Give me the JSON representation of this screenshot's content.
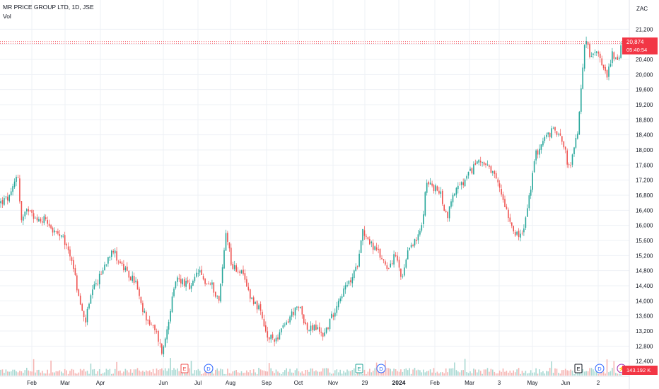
{
  "header": {
    "title": "MR PRICE GROUP LTD, 1D, JSE",
    "indicator": "Vol"
  },
  "currency": "ZAC",
  "price_label": {
    "price": "20,874",
    "countdown": "05:40:54"
  },
  "volume_label": "143.192 K",
  "colors": {
    "up": "#26a69a",
    "down": "#ef5350",
    "badge": "#f23645",
    "grid": "#eef1f6"
  },
  "events": [
    {
      "type": "earnings",
      "label": "E",
      "x": 261,
      "color": "#ef5350"
    },
    {
      "type": "dividend",
      "label": "D",
      "x": 295,
      "color": "#2962ff"
    },
    {
      "type": "earnings",
      "label": "E",
      "x": 508,
      "color": "#26a69a"
    },
    {
      "type": "dividend",
      "label": "D",
      "x": 539,
      "color": "#2962ff"
    },
    {
      "type": "earnings",
      "label": "E",
      "x": 818,
      "color": "#131722"
    },
    {
      "type": "dividend",
      "label": "D",
      "x": 848,
      "color": "#2962ff"
    },
    {
      "type": "split",
      "label": "⚡",
      "x": 879,
      "color": "#9c27b0"
    }
  ],
  "chart_data": {
    "type": "candlestick",
    "y_axis": {
      "min": 12000,
      "max": 21600,
      "ticks": [
        12400,
        12800,
        13200,
        13600,
        14000,
        14400,
        14800,
        15200,
        15600,
        16000,
        16400,
        16800,
        17200,
        17600,
        18000,
        18400,
        18800,
        19200,
        19600,
        20000,
        20400,
        20800,
        21200
      ]
    },
    "x_ticks": [
      "Feb",
      "Mar",
      "Apr",
      "Jun",
      "Jul",
      "Aug",
      "Sep",
      "Oct",
      "Nov",
      "29",
      "2024",
      "Feb",
      "Mar",
      "3",
      "May",
      "Jun",
      "2"
    ],
    "anchors": [
      {
        "x": 0,
        "y": 16600
      },
      {
        "x": 15,
        "y": 16750
      },
      {
        "x": 25,
        "y": 17450
      },
      {
        "x": 30,
        "y": 16100
      },
      {
        "x": 42,
        "y": 16500
      },
      {
        "x": 52,
        "y": 16100
      },
      {
        "x": 65,
        "y": 16200
      },
      {
        "x": 75,
        "y": 15850
      },
      {
        "x": 90,
        "y": 15600
      },
      {
        "x": 102,
        "y": 15100
      },
      {
        "x": 110,
        "y": 14200
      },
      {
        "x": 120,
        "y": 13400
      },
      {
        "x": 130,
        "y": 14200
      },
      {
        "x": 145,
        "y": 14800
      },
      {
        "x": 158,
        "y": 15400
      },
      {
        "x": 170,
        "y": 15000
      },
      {
        "x": 180,
        "y": 14700
      },
      {
        "x": 192,
        "y": 14500
      },
      {
        "x": 200,
        "y": 13800
      },
      {
        "x": 212,
        "y": 13400
      },
      {
        "x": 222,
        "y": 13100
      },
      {
        "x": 230,
        "y": 12600
      },
      {
        "x": 240,
        "y": 13700
      },
      {
        "x": 250,
        "y": 14600
      },
      {
        "x": 260,
        "y": 14500
      },
      {
        "x": 270,
        "y": 14300
      },
      {
        "x": 280,
        "y": 14800
      },
      {
        "x": 290,
        "y": 14500
      },
      {
        "x": 300,
        "y": 14400
      },
      {
        "x": 310,
        "y": 14000
      },
      {
        "x": 320,
        "y": 15900
      },
      {
        "x": 328,
        "y": 14900
      },
      {
        "x": 340,
        "y": 14800
      },
      {
        "x": 355,
        "y": 14100
      },
      {
        "x": 366,
        "y": 13800
      },
      {
        "x": 378,
        "y": 13000
      },
      {
        "x": 390,
        "y": 13000
      },
      {
        "x": 402,
        "y": 13300
      },
      {
        "x": 414,
        "y": 13700
      },
      {
        "x": 425,
        "y": 13800
      },
      {
        "x": 435,
        "y": 13200
      },
      {
        "x": 445,
        "y": 13300
      },
      {
        "x": 458,
        "y": 13100
      },
      {
        "x": 470,
        "y": 13600
      },
      {
        "x": 480,
        "y": 14100
      },
      {
        "x": 495,
        "y": 14500
      },
      {
        "x": 505,
        "y": 14900
      },
      {
        "x": 512,
        "y": 15900
      },
      {
        "x": 525,
        "y": 15500
      },
      {
        "x": 537,
        "y": 15200
      },
      {
        "x": 548,
        "y": 14900
      },
      {
        "x": 560,
        "y": 15200
      },
      {
        "x": 568,
        "y": 14500
      },
      {
        "x": 580,
        "y": 15500
      },
      {
        "x": 590,
        "y": 15600
      },
      {
        "x": 598,
        "y": 16100
      },
      {
        "x": 602,
        "y": 17200
      },
      {
        "x": 612,
        "y": 17000
      },
      {
        "x": 622,
        "y": 16900
      },
      {
        "x": 632,
        "y": 16200
      },
      {
        "x": 642,
        "y": 16900
      },
      {
        "x": 655,
        "y": 17100
      },
      {
        "x": 665,
        "y": 17400
      },
      {
        "x": 678,
        "y": 17800
      },
      {
        "x": 690,
        "y": 17500
      },
      {
        "x": 702,
        "y": 17200
      },
      {
        "x": 712,
        "y": 16700
      },
      {
        "x": 722,
        "y": 16100
      },
      {
        "x": 732,
        "y": 15700
      },
      {
        "x": 740,
        "y": 15800
      },
      {
        "x": 748,
        "y": 16700
      },
      {
        "x": 758,
        "y": 17900
      },
      {
        "x": 770,
        "y": 18300
      },
      {
        "x": 782,
        "y": 18500
      },
      {
        "x": 792,
        "y": 18500
      },
      {
        "x": 800,
        "y": 17900
      },
      {
        "x": 806,
        "y": 17400
      },
      {
        "x": 812,
        "y": 18100
      },
      {
        "x": 818,
        "y": 18500
      },
      {
        "x": 822,
        "y": 19800
      },
      {
        "x": 828,
        "y": 21000
      },
      {
        "x": 836,
        "y": 20400
      },
      {
        "x": 845,
        "y": 20700
      },
      {
        "x": 852,
        "y": 20300
      },
      {
        "x": 858,
        "y": 19900
      },
      {
        "x": 866,
        "y": 20600
      },
      {
        "x": 874,
        "y": 20300
      },
      {
        "x": 880,
        "y": 20874
      }
    ]
  }
}
